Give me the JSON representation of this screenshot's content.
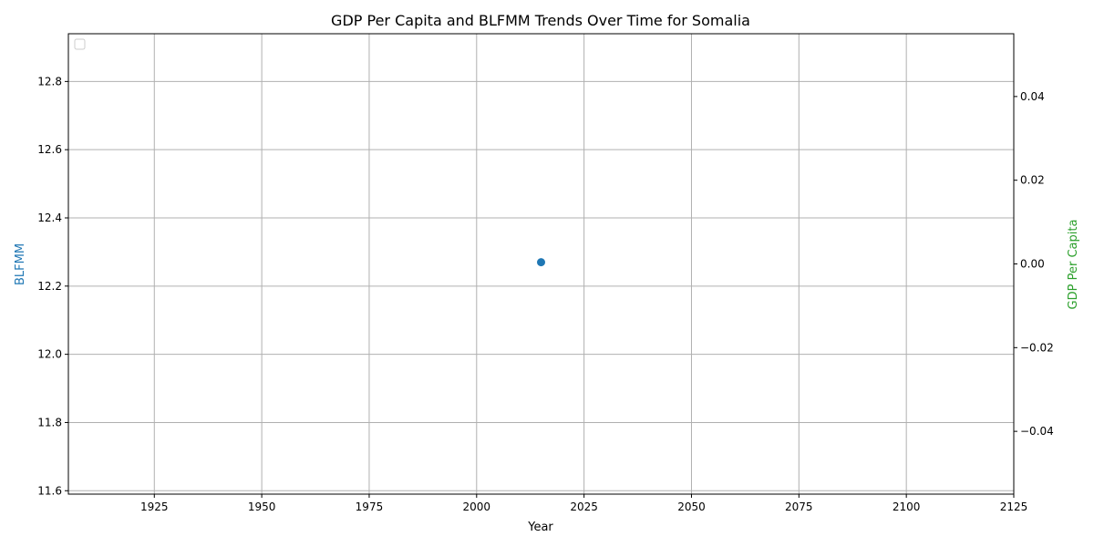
{
  "chart_data": {
    "type": "scatter",
    "title": "GDP Per Capita and BLFMM Trends Over Time for Somalia",
    "xlabel": "Year",
    "ylabel_left": "BLFMM",
    "ylabel_right": "GDP Per Capita",
    "xlim": [
      1905,
      2125
    ],
    "ylim_left": [
      11.59,
      12.94
    ],
    "ylim_right": [
      -0.055,
      0.055
    ],
    "x_ticks": [
      1925,
      1950,
      1975,
      2000,
      2025,
      2050,
      2075,
      2100,
      2125
    ],
    "y_ticks_left": [
      11.6,
      11.8,
      12.0,
      12.2,
      12.4,
      12.6,
      12.8
    ],
    "y_ticks_right": [
      -0.04,
      -0.02,
      0.0,
      0.02,
      0.04
    ],
    "x_tick_labels": [
      "1925",
      "1950",
      "1975",
      "2000",
      "2025",
      "2050",
      "2075",
      "2100",
      "2125"
    ],
    "y_tick_labels_left": [
      "11.6",
      "11.8",
      "12.0",
      "12.2",
      "12.4",
      "12.6",
      "12.8"
    ],
    "y_tick_labels_right": [
      "−0.04",
      "−0.02",
      "0.00",
      "0.02",
      "0.04"
    ],
    "grid": true,
    "legend": "top-left, empty",
    "series": [
      {
        "axis": "left",
        "color": "#1f77b4",
        "x": [
          2015
        ],
        "y": [
          12.27
        ]
      }
    ],
    "colors": {
      "left_axis_label": "#1f77b4",
      "right_axis_label": "#2ca02c",
      "grid": "#b0b0b0"
    }
  }
}
